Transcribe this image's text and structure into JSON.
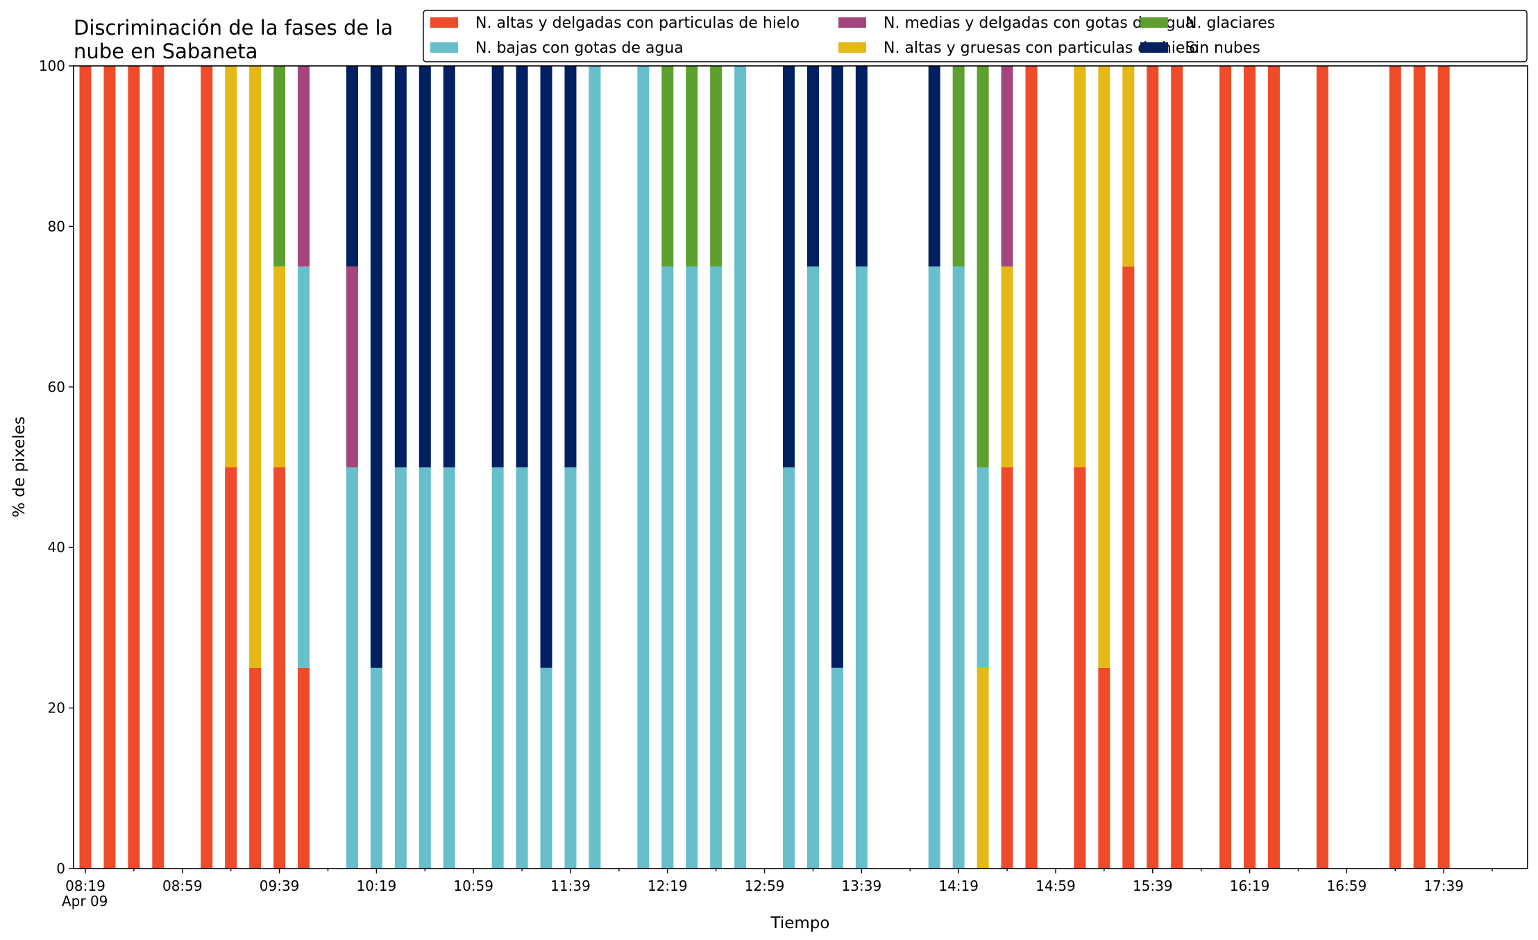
{
  "chart_data": {
    "type": "bar",
    "stacked": true,
    "title": "Discriminación de la fases de la nube en Sabaneta",
    "title_lines": [
      "Discriminación de la fases de la",
      "nube en Sabaneta"
    ],
    "xlabel": "Tiempo",
    "ylabel": "% de pixeles",
    "ylim": [
      0,
      100
    ],
    "yticks": [
      0,
      20,
      40,
      60,
      80,
      100
    ],
    "x_start_time": "08:19",
    "x_end_time": "18:09",
    "x_tick_labels": [
      "08:19",
      "08:59",
      "09:39",
      "10:19",
      "10:59",
      "11:39",
      "12:19",
      "12:59",
      "13:39",
      "14:19",
      "14:59",
      "15:39",
      "16:19",
      "16:59",
      "17:39"
    ],
    "x_date_label": "Apr 09",
    "grid": false,
    "legend_position": "top-right",
    "series": [
      {
        "name": "N. altas y delgadas con particulas de hielo",
        "color": "#ee4b2b"
      },
      {
        "name": "N. altas y gruesas con particulas de hielo",
        "color": "#e6b817"
      },
      {
        "name": "N. bajas con gotas de agua",
        "color": "#67bfcb"
      },
      {
        "name": "N. glaciares",
        "color": "#5da02e"
      },
      {
        "name": "N. medias y delgadas con gotas de agua",
        "color": "#a4467d"
      },
      {
        "name": "Sin nubes",
        "color": "#00205f"
      }
    ],
    "legend_order": [
      0,
      2,
      4,
      1,
      3,
      5
    ],
    "bars": [
      {
        "time": "08:19",
        "values": [
          100,
          0,
          0,
          0,
          0,
          0
        ]
      },
      {
        "time": "08:29",
        "values": [
          100,
          0,
          0,
          0,
          0,
          0
        ]
      },
      {
        "time": "08:39",
        "values": [
          100,
          0,
          0,
          0,
          0,
          0
        ]
      },
      {
        "time": "08:49",
        "values": [
          100,
          0,
          0,
          0,
          0,
          0
        ]
      },
      {
        "time": "09:09",
        "values": [
          100,
          0,
          0,
          0,
          0,
          0
        ]
      },
      {
        "time": "09:19",
        "values": [
          50,
          50,
          0,
          0,
          0,
          0
        ]
      },
      {
        "time": "09:29",
        "values": [
          25,
          75,
          0,
          0,
          0,
          0
        ]
      },
      {
        "time": "09:39",
        "values": [
          50,
          25,
          0,
          25,
          0,
          0
        ]
      },
      {
        "time": "09:49",
        "values": [
          25,
          0,
          50,
          0,
          25,
          0
        ]
      },
      {
        "time": "10:09",
        "values": [
          0,
          0,
          50,
          0,
          25,
          25
        ]
      },
      {
        "time": "10:19",
        "values": [
          0,
          0,
          25,
          0,
          0,
          75
        ]
      },
      {
        "time": "10:29",
        "values": [
          0,
          0,
          50,
          0,
          0,
          50
        ]
      },
      {
        "time": "10:39",
        "values": [
          0,
          0,
          50,
          0,
          0,
          50
        ]
      },
      {
        "time": "10:49",
        "values": [
          0,
          0,
          50,
          0,
          0,
          50
        ]
      },
      {
        "time": "11:09",
        "values": [
          0,
          0,
          50,
          0,
          0,
          50
        ]
      },
      {
        "time": "11:19",
        "values": [
          0,
          0,
          50,
          0,
          0,
          50
        ]
      },
      {
        "time": "11:29",
        "values": [
          0,
          0,
          25,
          0,
          0,
          75
        ]
      },
      {
        "time": "11:39",
        "values": [
          0,
          0,
          50,
          0,
          0,
          50
        ]
      },
      {
        "time": "11:49",
        "values": [
          0,
          0,
          100,
          0,
          0,
          0
        ]
      },
      {
        "time": "12:09",
        "values": [
          0,
          0,
          100,
          0,
          0,
          0
        ]
      },
      {
        "time": "12:19",
        "values": [
          0,
          0,
          75,
          25,
          0,
          0
        ]
      },
      {
        "time": "12:29",
        "values": [
          0,
          0,
          75,
          25,
          0,
          0
        ]
      },
      {
        "time": "12:39",
        "values": [
          0,
          0,
          75,
          25,
          0,
          0
        ]
      },
      {
        "time": "12:49",
        "values": [
          0,
          0,
          100,
          0,
          0,
          0
        ]
      },
      {
        "time": "13:09",
        "values": [
          0,
          0,
          50,
          0,
          0,
          50
        ]
      },
      {
        "time": "13:19",
        "values": [
          0,
          0,
          75,
          0,
          0,
          25
        ]
      },
      {
        "time": "13:29",
        "values": [
          0,
          0,
          25,
          0,
          0,
          75
        ]
      },
      {
        "time": "13:39",
        "values": [
          0,
          0,
          75,
          0,
          0,
          25
        ]
      },
      {
        "time": "14:09",
        "values": [
          0,
          0,
          75,
          0,
          0,
          25
        ]
      },
      {
        "time": "14:19",
        "values": [
          0,
          0,
          75,
          25,
          0,
          0
        ]
      },
      {
        "time": "14:29",
        "values": [
          0,
          25,
          25,
          50,
          0,
          0
        ]
      },
      {
        "time": "14:39",
        "values": [
          50,
          25,
          0,
          0,
          25,
          0
        ]
      },
      {
        "time": "14:49",
        "values": [
          100,
          0,
          0,
          0,
          0,
          0
        ]
      },
      {
        "time": "15:09",
        "values": [
          50,
          50,
          0,
          0,
          0,
          0
        ]
      },
      {
        "time": "15:19",
        "values": [
          25,
          75,
          0,
          0,
          0,
          0
        ]
      },
      {
        "time": "15:29",
        "values": [
          75,
          25,
          0,
          0,
          0,
          0
        ]
      },
      {
        "time": "15:39",
        "values": [
          100,
          0,
          0,
          0,
          0,
          0
        ]
      },
      {
        "time": "15:49",
        "values": [
          100,
          0,
          0,
          0,
          0,
          0
        ]
      },
      {
        "time": "16:09",
        "values": [
          100,
          0,
          0,
          0,
          0,
          0
        ]
      },
      {
        "time": "16:19",
        "values": [
          100,
          0,
          0,
          0,
          0,
          0
        ]
      },
      {
        "time": "16:29",
        "values": [
          100,
          0,
          0,
          0,
          0,
          0
        ]
      },
      {
        "time": "16:49",
        "values": [
          100,
          0,
          0,
          0,
          0,
          0
        ]
      },
      {
        "time": "17:19",
        "values": [
          100,
          0,
          0,
          0,
          0,
          0
        ]
      },
      {
        "time": "17:29",
        "values": [
          100,
          0,
          0,
          0,
          0,
          0
        ]
      },
      {
        "time": "17:39",
        "values": [
          100,
          0,
          0,
          0,
          0,
          0
        ]
      }
    ]
  }
}
